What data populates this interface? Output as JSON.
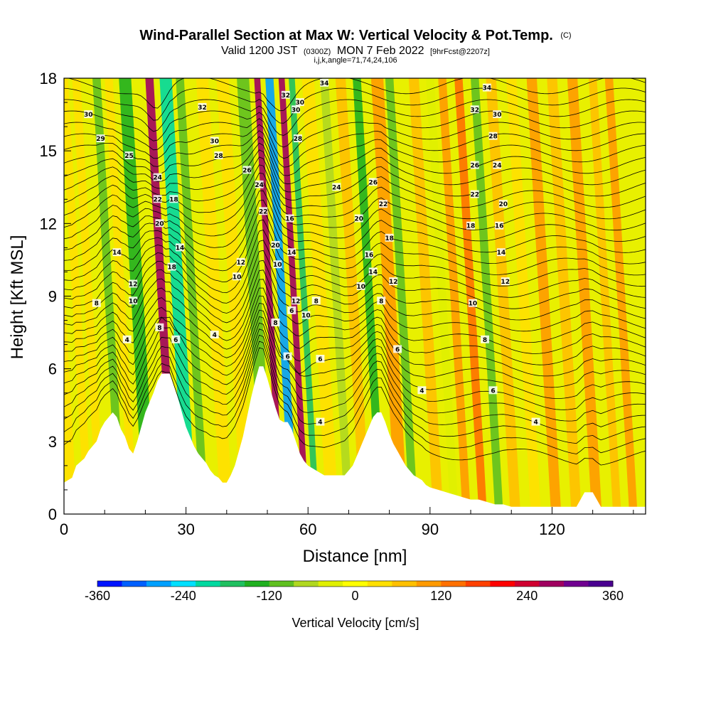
{
  "titles": {
    "main": "Wind-Parallel Section at Max W: Vertical Velocity & Pot.Temp.",
    "main_suffix": "(C)",
    "valid_prefix": "Valid 1200 JST",
    "valid_utc": "(0300Z)",
    "valid_date": "MON 7 Feb 2022",
    "valid_fcst": "[9hrFcst@2207z]",
    "ijk": "i,j,k,angle=71,74,24,106"
  },
  "chart_data": {
    "type": "heatmap",
    "xlabel": "Distance [nm]",
    "ylabel": "Height [Kft MSL]",
    "xlim": [
      0,
      143
    ],
    "ylim": [
      0,
      18
    ],
    "xticks": [
      0,
      30,
      60,
      90,
      120
    ],
    "yticks": [
      0,
      3,
      6,
      9,
      12,
      15,
      18
    ],
    "terrain": [
      [
        0,
        1.3
      ],
      [
        2,
        1.5
      ],
      [
        3,
        2.0
      ],
      [
        5,
        2.3
      ],
      [
        6,
        2.6
      ],
      [
        7,
        2.8
      ],
      [
        8,
        3.0
      ],
      [
        9,
        3.5
      ],
      [
        10,
        3.8
      ],
      [
        12,
        4.2
      ],
      [
        13,
        4.0
      ],
      [
        14,
        3.5
      ],
      [
        15,
        3.2
      ],
      [
        16,
        2.7
      ],
      [
        17,
        2.5
      ],
      [
        18,
        3.0
      ],
      [
        19,
        3.6
      ],
      [
        20,
        4.2
      ],
      [
        21,
        4.6
      ],
      [
        22,
        5.0
      ],
      [
        23,
        5.5
      ],
      [
        24,
        5.8
      ],
      [
        26,
        5.8
      ],
      [
        27,
        5.3
      ],
      [
        28,
        4.8
      ],
      [
        29,
        4.2
      ],
      [
        30,
        3.6
      ],
      [
        31,
        3.2
      ],
      [
        32,
        2.8
      ],
      [
        33,
        2.5
      ],
      [
        34,
        2.3
      ],
      [
        35,
        2.1
      ],
      [
        36,
        1.8
      ],
      [
        37,
        1.6
      ],
      [
        38,
        1.5
      ],
      [
        39,
        1.3
      ],
      [
        40,
        1.3
      ],
      [
        41,
        1.6
      ],
      [
        42,
        2.0
      ],
      [
        43,
        2.6
      ],
      [
        44,
        3.2
      ],
      [
        45,
        4.0
      ],
      [
        46,
        4.8
      ],
      [
        47,
        5.5
      ],
      [
        48,
        6.1
      ],
      [
        49,
        6.1
      ],
      [
        50,
        5.6
      ],
      [
        51,
        5.0
      ],
      [
        52,
        4.4
      ],
      [
        53,
        3.9
      ],
      [
        54,
        3.8
      ],
      [
        55,
        3.8
      ],
      [
        56,
        3.5
      ],
      [
        57,
        3.0
      ],
      [
        58,
        2.5
      ],
      [
        59,
        2.2
      ],
      [
        60,
        2.0
      ],
      [
        61,
        1.9
      ],
      [
        62,
        1.8
      ],
      [
        63,
        1.7
      ],
      [
        64,
        1.6
      ],
      [
        66,
        1.6
      ],
      [
        68,
        1.6
      ],
      [
        69,
        1.6
      ],
      [
        70,
        1.8
      ],
      [
        71,
        2.0
      ],
      [
        72,
        2.4
      ],
      [
        73,
        2.8
      ],
      [
        74,
        3.2
      ],
      [
        75,
        3.6
      ],
      [
        76,
        4.0
      ],
      [
        77,
        4.2
      ],
      [
        78,
        4.2
      ],
      [
        79,
        3.8
      ],
      [
        80,
        3.3
      ],
      [
        81,
        2.9
      ],
      [
        82,
        2.6
      ],
      [
        83,
        2.3
      ],
      [
        84,
        2.0
      ],
      [
        85,
        1.8
      ],
      [
        86,
        1.6
      ],
      [
        87,
        1.5
      ],
      [
        88,
        1.4
      ],
      [
        89,
        1.2
      ],
      [
        90,
        1.1
      ],
      [
        92,
        1.0
      ],
      [
        94,
        0.9
      ],
      [
        96,
        0.8
      ],
      [
        98,
        0.7
      ],
      [
        100,
        0.6
      ],
      [
        102,
        0.6
      ],
      [
        104,
        0.5
      ],
      [
        106,
        0.4
      ],
      [
        108,
        0.4
      ],
      [
        110,
        0.3
      ],
      [
        126,
        0.3
      ],
      [
        128,
        0.9
      ],
      [
        130,
        0.9
      ],
      [
        131,
        0.6
      ],
      [
        132,
        0.3
      ],
      [
        143,
        0.3
      ]
    ],
    "velocity_bands": [
      {
        "x": 2,
        "w": 2.5,
        "v": 30
      },
      {
        "x": 6,
        "w": 2.0,
        "v": 20
      },
      {
        "x": 9,
        "w": 2.0,
        "v": 50
      },
      {
        "x": 14,
        "w": 2.0,
        "v": -90
      },
      {
        "x": 17,
        "w": 2.0,
        "v": 40
      },
      {
        "x": 21,
        "w": 3.0,
        "v": -130
      },
      {
        "x": 27,
        "w": 2.0,
        "v": 260
      },
      {
        "x": 31,
        "w": 3.0,
        "v": -210
      },
      {
        "x": 34.5,
        "w": 2.0,
        "v": -120
      },
      {
        "x": 40,
        "w": 3.0,
        "v": 30
      },
      {
        "x": 45,
        "w": 3.0,
        "v": 50
      },
      {
        "x": 50,
        "w": 3.0,
        "v": -100
      },
      {
        "x": 53.5,
        "w": 1.5,
        "v": 260
      },
      {
        "x": 56.5,
        "w": 2.0,
        "v": -280
      },
      {
        "x": 59.5,
        "w": 1.5,
        "v": 270
      },
      {
        "x": 62,
        "w": 1.5,
        "v": -160
      },
      {
        "x": 66,
        "w": 3.0,
        "v": 40
      },
      {
        "x": 70,
        "w": 2.0,
        "v": -60
      },
      {
        "x": 74,
        "w": 2.5,
        "v": 80
      },
      {
        "x": 78,
        "w": 2.0,
        "v": -130
      },
      {
        "x": 83,
        "w": 3.0,
        "v": 90
      },
      {
        "x": 86,
        "w": 2.0,
        "v": -110
      },
      {
        "x": 92,
        "w": 2.5,
        "v": 60
      },
      {
        "x": 96,
        "w": 2.0,
        "v": -40
      },
      {
        "x": 99,
        "w": 2.0,
        "v": 110
      },
      {
        "x": 103,
        "w": 2.0,
        "v": 150
      },
      {
        "x": 107,
        "w": 2.0,
        "v": -120
      },
      {
        "x": 111,
        "w": 2.5,
        "v": 70
      },
      {
        "x": 116,
        "w": 2.5,
        "v": 40
      },
      {
        "x": 121,
        "w": 2.5,
        "v": 90
      },
      {
        "x": 126,
        "w": 2.5,
        "v": 60
      },
      {
        "x": 131,
        "w": 2.5,
        "v": 110
      },
      {
        "x": 136,
        "w": 2.0,
        "v": 60
      },
      {
        "x": 140,
        "w": 2.0,
        "v": 90
      }
    ],
    "theta_levels": [
      4,
      6,
      8,
      10,
      12,
      14,
      16,
      18,
      20,
      22,
      24,
      26,
      28,
      30,
      32,
      34
    ],
    "contour_labels": [
      {
        "x": 15.5,
        "y": 7.2,
        "t": "4"
      },
      {
        "x": 8,
        "y": 8.7,
        "t": "8"
      },
      {
        "x": 17,
        "y": 8.8,
        "t": "10"
      },
      {
        "x": 17,
        "y": 9.5,
        "t": "12"
      },
      {
        "x": 13,
        "y": 10.8,
        "t": "14"
      },
      {
        "x": 6,
        "y": 16.5,
        "t": "30"
      },
      {
        "x": 9,
        "y": 15.5,
        "t": "29"
      },
      {
        "x": 16,
        "y": 14.8,
        "t": "25"
      },
      {
        "x": 23,
        "y": 13.9,
        "t": "24"
      },
      {
        "x": 23,
        "y": 13.0,
        "t": "22"
      },
      {
        "x": 23.5,
        "y": 12.0,
        "t": "20"
      },
      {
        "x": 23.5,
        "y": 7.7,
        "t": "8"
      },
      {
        "x": 27.5,
        "y": 7.2,
        "t": "6"
      },
      {
        "x": 27,
        "y": 13.0,
        "t": "18"
      },
      {
        "x": 28.5,
        "y": 11.0,
        "t": "14"
      },
      {
        "x": 26.5,
        "y": 10.2,
        "t": "18"
      },
      {
        "x": 34,
        "y": 16.8,
        "t": "32"
      },
      {
        "x": 37,
        "y": 15.4,
        "t": "30"
      },
      {
        "x": 38,
        "y": 14.8,
        "t": "28"
      },
      {
        "x": 45,
        "y": 14.2,
        "t": "26"
      },
      {
        "x": 43.5,
        "y": 10.4,
        "t": "12"
      },
      {
        "x": 42.5,
        "y": 9.8,
        "t": "10"
      },
      {
        "x": 37,
        "y": 7.4,
        "t": "4"
      },
      {
        "x": 48,
        "y": 13.6,
        "t": "24"
      },
      {
        "x": 49,
        "y": 12.5,
        "t": "22"
      },
      {
        "x": 52,
        "y": 11.1,
        "t": "20"
      },
      {
        "x": 52.5,
        "y": 10.3,
        "t": "10"
      },
      {
        "x": 52,
        "y": 7.9,
        "t": "8"
      },
      {
        "x": 55,
        "y": 6.5,
        "t": "6"
      },
      {
        "x": 54.5,
        "y": 17.3,
        "t": "32"
      },
      {
        "x": 58,
        "y": 17.0,
        "t": "30"
      },
      {
        "x": 57,
        "y": 16.7,
        "t": "30"
      },
      {
        "x": 57.5,
        "y": 15.5,
        "t": "28"
      },
      {
        "x": 55.5,
        "y": 12.2,
        "t": "16"
      },
      {
        "x": 56,
        "y": 10.8,
        "t": "14"
      },
      {
        "x": 57,
        "y": 8.8,
        "t": "12"
      },
      {
        "x": 56,
        "y": 8.4,
        "t": "6"
      },
      {
        "x": 59.5,
        "y": 8.2,
        "t": "10"
      },
      {
        "x": 62,
        "y": 8.8,
        "t": "8"
      },
      {
        "x": 63,
        "y": 6.4,
        "t": "6"
      },
      {
        "x": 63,
        "y": 3.8,
        "t": "4"
      },
      {
        "x": 64,
        "y": 17.8,
        "t": "34"
      },
      {
        "x": 67,
        "y": 13.5,
        "t": "24"
      },
      {
        "x": 76,
        "y": 13.7,
        "t": "26"
      },
      {
        "x": 78.5,
        "y": 12.8,
        "t": "22"
      },
      {
        "x": 72.5,
        "y": 12.2,
        "t": "20"
      },
      {
        "x": 80,
        "y": 11.4,
        "t": "18"
      },
      {
        "x": 75,
        "y": 10.7,
        "t": "16"
      },
      {
        "x": 76,
        "y": 10.0,
        "t": "14"
      },
      {
        "x": 73,
        "y": 9.4,
        "t": "10"
      },
      {
        "x": 81,
        "y": 9.6,
        "t": "12"
      },
      {
        "x": 78,
        "y": 8.8,
        "t": "8"
      },
      {
        "x": 82,
        "y": 6.8,
        "t": "6"
      },
      {
        "x": 88,
        "y": 5.1,
        "t": "4"
      },
      {
        "x": 104,
        "y": 17.6,
        "t": "34"
      },
      {
        "x": 101,
        "y": 16.7,
        "t": "32"
      },
      {
        "x": 106.5,
        "y": 16.5,
        "t": "30"
      },
      {
        "x": 105.5,
        "y": 15.6,
        "t": "28"
      },
      {
        "x": 101,
        "y": 14.4,
        "t": "26"
      },
      {
        "x": 106.5,
        "y": 14.4,
        "t": "24"
      },
      {
        "x": 101,
        "y": 13.2,
        "t": "22"
      },
      {
        "x": 108,
        "y": 12.8,
        "t": "20"
      },
      {
        "x": 100,
        "y": 11.9,
        "t": "18"
      },
      {
        "x": 107,
        "y": 11.9,
        "t": "16"
      },
      {
        "x": 107.5,
        "y": 10.8,
        "t": "14"
      },
      {
        "x": 108.5,
        "y": 9.6,
        "t": "12"
      },
      {
        "x": 100.5,
        "y": 8.7,
        "t": "10"
      },
      {
        "x": 103.5,
        "y": 7.2,
        "t": "8"
      },
      {
        "x": 105.5,
        "y": 5.1,
        "t": "6"
      },
      {
        "x": 116,
        "y": 3.8,
        "t": "4"
      }
    ]
  },
  "colorbar": {
    "title": "Vertical Velocity [cm/s]",
    "min": -360,
    "max": 360,
    "ticks": [
      "-360",
      "-240",
      "-120",
      "0",
      "120",
      "240",
      "360"
    ],
    "colors": [
      "#0014ff",
      "#0060ff",
      "#00a0ff",
      "#00e0ff",
      "#00d9a0",
      "#20c060",
      "#20b020",
      "#60c020",
      "#b0d820",
      "#e0f000",
      "#ffff00",
      "#ffe000",
      "#ffc000",
      "#ff9a00",
      "#ff7000",
      "#ff4000",
      "#ff0000",
      "#d00030",
      "#a00060",
      "#700090",
      "#4a0090"
    ]
  }
}
